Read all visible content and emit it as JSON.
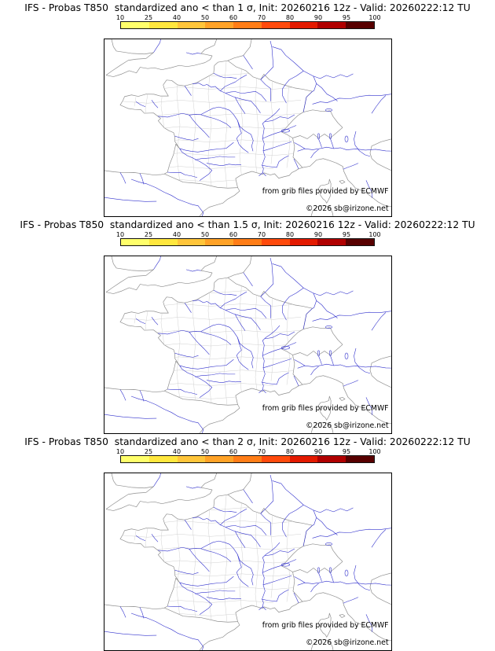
{
  "page": {
    "background": "#ffffff"
  },
  "map_colors": {
    "river_color": "#3232cd",
    "coast_color": "#8f8f8f",
    "department_color": "#cccccc"
  },
  "colorbar": {
    "tick_labels": [
      "10",
      "25",
      "40",
      "50",
      "60",
      "70",
      "80",
      "90",
      "95",
      "100"
    ],
    "segment_colors": [
      "#ffff6b",
      "#ffe73e",
      "#ffc53a",
      "#ffa227",
      "#ff7d17",
      "#ff4a0c",
      "#e31a00",
      "#b00000",
      "#580000"
    ]
  },
  "panels": [
    {
      "sigma": "1",
      "title": "IFS - Probas T850  standardized ano < than 1 σ, Init: 20260216 12z - Valid: 20260222:12 TU",
      "credit_source": "from grib files provided by ECMWF",
      "credit_copyright": "©2026 sb@irizone.net"
    },
    {
      "sigma": "1.5",
      "title": "IFS - Probas T850  standardized ano < than 1.5 σ, Init: 20260216 12z - Valid: 20260222:12 TU",
      "credit_source": "from grib files provided by ECMWF",
      "credit_copyright": "©2026 sb@irizone.net"
    },
    {
      "sigma": "2",
      "title": "IFS - Probas T850  standardized ano < than 2 σ, Init: 20260216 12z - Valid: 20260222:12 TU",
      "credit_source": "from grib files provided by ECMWF",
      "credit_copyright": "©2026 sb@irizone.net"
    }
  ]
}
